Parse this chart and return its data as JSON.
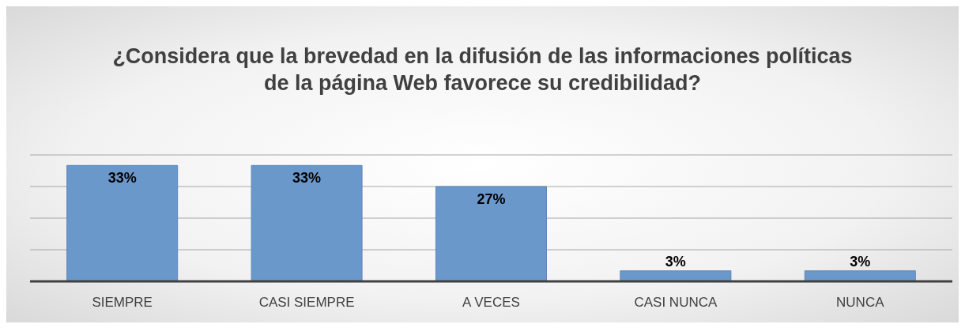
{
  "chart_data": {
    "type": "bar",
    "title": "¿Considera que la brevedad en la difusión de las informaciones políticas de la página Web favorece su credibilidad?",
    "categories": [
      "SIEMPRE",
      "CASI SIEMPRE",
      "A VECES",
      "CASI NUNCA",
      "NUNCA"
    ],
    "values": [
      33,
      33,
      27,
      3,
      3
    ],
    "value_labels": [
      "33%",
      "33%",
      "27%",
      "3%",
      "3%"
    ],
    "color": "#6a98cb",
    "grid": "y",
    "tick_labels": "x"
  }
}
